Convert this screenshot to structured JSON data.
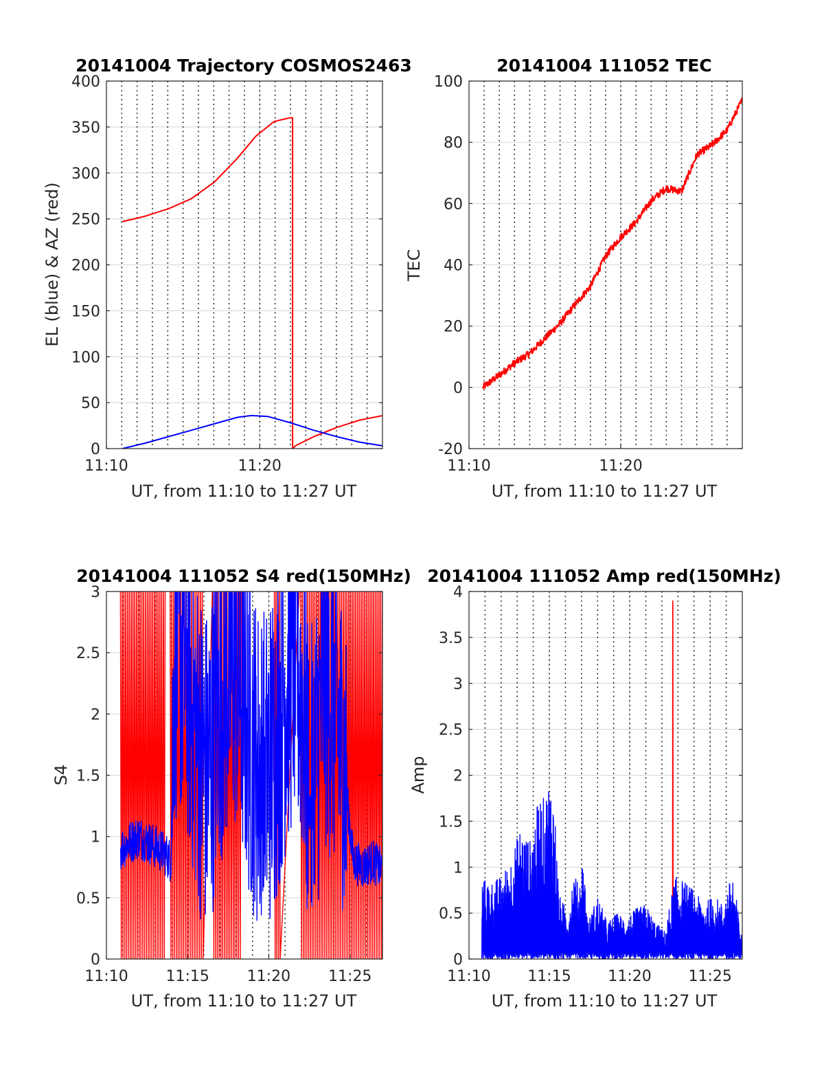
{
  "chart_data": [
    {
      "id": "trajectory",
      "type": "line",
      "title": "20141004 Trajectory COSMOS2463",
      "xlabel": "UT, from 11:10 to 11:27 UT",
      "ylabel": "EL (blue) & AZ (red)",
      "xlim": [
        11.1667,
        11.4667
      ],
      "xticks": [
        {
          "v": 11.1667,
          "label": "11:10"
        },
        {
          "v": 11.3333,
          "label": "11:20"
        }
      ],
      "ylim": [
        0,
        400
      ],
      "yticks": [
        0,
        50,
        100,
        150,
        200,
        250,
        300,
        350,
        400
      ],
      "grid": "solid-horizontal, dotted-vertical",
      "series": [
        {
          "color": "#ff0000",
          "x": [
            11.184,
            11.209,
            11.234,
            11.259,
            11.284,
            11.309,
            11.329,
            11.349,
            11.366,
            11.369,
            11.369,
            11.372,
            11.392,
            11.417,
            11.442,
            11.467
          ],
          "y": [
            247,
            253,
            261,
            272,
            290,
            316,
            340,
            356,
            360,
            360,
            0,
            3,
            13,
            23,
            31,
            36
          ]
        },
        {
          "color": "#0000ff",
          "x": [
            11.184,
            11.209,
            11.234,
            11.259,
            11.284,
            11.309,
            11.324,
            11.342,
            11.367,
            11.392,
            11.417,
            11.442,
            11.467
          ],
          "y": [
            0,
            6,
            13,
            20,
            27,
            34,
            36,
            35,
            28,
            20,
            13,
            7,
            3
          ]
        }
      ]
    },
    {
      "id": "tec",
      "type": "line",
      "title": "20141004 111052 TEC",
      "xlabel": "UT, from 11:10 to 11:27 UT",
      "ylabel": "TEC",
      "xlim": [
        11.1667,
        11.4667
      ],
      "xticks": [
        {
          "v": 11.1667,
          "label": "11:10"
        },
        {
          "v": 11.3333,
          "label": "11:20"
        }
      ],
      "ylim": [
        -20,
        100
      ],
      "yticks": [
        -20,
        0,
        20,
        40,
        60,
        80,
        100
      ],
      "grid": "solid-horizontal, dotted-vertical",
      "series": [
        {
          "color": "#ff0000",
          "x": [
            11.182,
            11.2,
            11.217,
            11.233,
            11.25,
            11.267,
            11.283,
            11.3,
            11.317,
            11.333,
            11.35,
            11.367,
            11.383,
            11.4,
            11.417,
            11.433,
            11.45,
            11.467
          ],
          "y": [
            0,
            4,
            8,
            11,
            16,
            21,
            27,
            33,
            43,
            49,
            54,
            61,
            65,
            64,
            76,
            79,
            84,
            94
          ]
        }
      ]
    },
    {
      "id": "s4",
      "type": "line",
      "title": "20141004 111052 S4 red(150MHz)",
      "xlabel": "UT, from 11:10 to 11:27 UT",
      "ylabel": "S4",
      "xlim": [
        11.1667,
        11.45
      ],
      "xticks": [
        {
          "v": 11.1667,
          "label": "11:10"
        },
        {
          "v": 11.25,
          "label": "11:15"
        },
        {
          "v": 11.3333,
          "label": "11:20"
        },
        {
          "v": 11.4167,
          "label": "11:25"
        }
      ],
      "ylim": [
        0,
        3
      ],
      "yticks": [
        0,
        0.5,
        1,
        1.5,
        2,
        2.5,
        3
      ],
      "grid": "solid-horizontal, dotted-vertical",
      "series": [
        {
          "color": "#ff0000",
          "segments": [
            [
              11.181,
              11.227
            ],
            [
              11.232,
              11.266
            ],
            [
              11.276,
              11.305
            ],
            [
              11.339,
              11.345
            ],
            [
              11.366,
              11.45
            ]
          ],
          "baseline": 0.7
        },
        {
          "color": "#0000ff",
          "x": [
            11.181,
            11.19,
            11.2,
            11.21,
            11.22,
            11.228,
            11.233,
            11.236,
            11.24,
            11.25,
            11.26,
            11.27,
            11.285,
            11.3,
            11.31,
            11.32,
            11.33,
            11.34,
            11.35,
            11.36,
            11.37,
            11.375,
            11.38,
            11.39,
            11.4,
            11.41,
            11.42,
            11.43,
            11.44,
            11.45
          ],
          "y": [
            0.9,
            0.95,
            1.0,
            0.95,
            0.9,
            0.85,
            0.8,
            2.4,
            2.6,
            2.3,
            1.8,
            1.5,
            2.2,
            2.4,
            2.0,
            1.6,
            1.5,
            1.8,
            2.2,
            2.5,
            2.0,
            1.2,
            1.5,
            2.3,
            2.1,
            1.6,
            0.8,
            0.75,
            0.8,
            0.72
          ]
        }
      ]
    },
    {
      "id": "amp",
      "type": "line",
      "title": "20141004 111052 Amp red(150MHz)",
      "xlabel": "UT, from 11:10 to 11:27 UT",
      "ylabel": "Amp",
      "xlim": [
        11.1667,
        11.45
      ],
      "xticks": [
        {
          "v": 11.1667,
          "label": "11:10"
        },
        {
          "v": 11.25,
          "label": "11:15"
        },
        {
          "v": 11.3333,
          "label": "11:20"
        },
        {
          "v": 11.4167,
          "label": "11:25"
        }
      ],
      "ylim": [
        0,
        4
      ],
      "yticks": [
        0,
        0.5,
        1,
        1.5,
        2,
        2.5,
        3,
        3.5,
        4
      ],
      "grid": "solid-horizontal, dotted-vertical",
      "series": [
        {
          "color": "#ff0000",
          "x": [
            11.3777,
            11.3778,
            11.3781,
            11.3783,
            11.3785,
            11.3786
          ],
          "y": [
            0.25,
            3.9,
            3.85,
            0.6,
            0.4,
            0.25
          ]
        },
        {
          "color": "#0000ff",
          "envelope": [
            [
              11.18,
              0.88
            ],
            [
              11.19,
              0.85
            ],
            [
              11.2,
              0.9
            ],
            [
              11.21,
              1.1
            ],
            [
              11.22,
              1.45
            ],
            [
              11.23,
              1.3
            ],
            [
              11.24,
              1.8
            ],
            [
              11.245,
              1.75
            ],
            [
              11.25,
              2.0
            ],
            [
              11.255,
              1.8
            ],
            [
              11.26,
              0.7
            ],
            [
              11.27,
              0.5
            ],
            [
              11.275,
              1.0
            ],
            [
              11.28,
              0.8
            ],
            [
              11.285,
              1.15
            ],
            [
              11.29,
              0.4
            ],
            [
              11.3,
              0.7
            ],
            [
              11.31,
              0.4
            ],
            [
              11.32,
              0.5
            ],
            [
              11.33,
              0.45
            ],
            [
              11.34,
              0.55
            ],
            [
              11.35,
              0.6
            ],
            [
              11.36,
              0.4
            ],
            [
              11.37,
              0.3
            ],
            [
              11.38,
              0.9
            ],
            [
              11.39,
              0.85
            ],
            [
              11.4,
              0.75
            ],
            [
              11.41,
              0.6
            ],
            [
              11.42,
              0.7
            ],
            [
              11.43,
              0.6
            ],
            [
              11.44,
              0.95
            ],
            [
              11.45,
              0.2
            ]
          ]
        }
      ]
    }
  ]
}
